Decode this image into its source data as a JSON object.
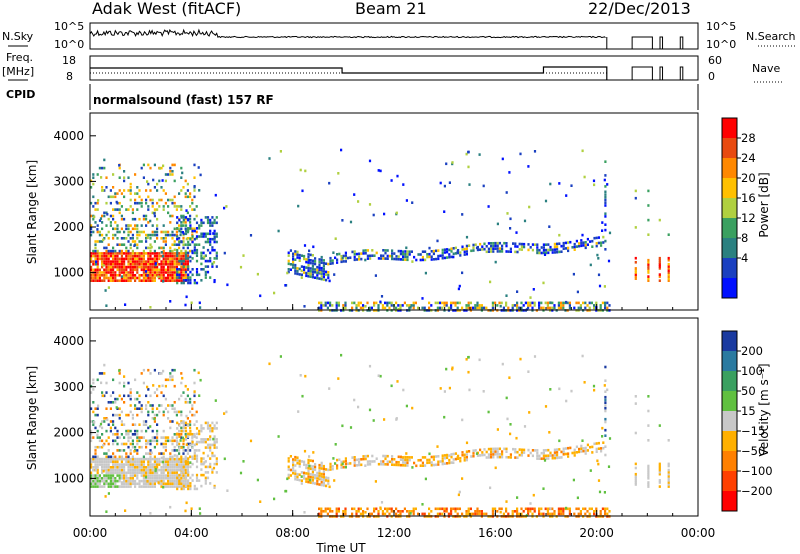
{
  "header": {
    "radar": "Adak West (fitACF)",
    "beam": "Beam 21",
    "date": "22/Dec/2013"
  },
  "params": {
    "nsky_label": "N.Sky",
    "nsky_ticks": [
      "10^5",
      "10^0"
    ],
    "nsearch_label": "N.Search",
    "nsearch_ticks": [
      "10^5",
      "10^0"
    ],
    "freq_label": "Freq.",
    "freq_unit": "[MHz]",
    "freq_ticks": [
      "18",
      "8"
    ],
    "nave_label": "Nave",
    "nave_ticks": [
      "60",
      "0"
    ],
    "cpid_label": "CPID",
    "cpid_value": "normalsound (fast) 157 RF"
  },
  "power_scale": {
    "label": "Power [dB]",
    "ticks": [
      "28",
      "24",
      "20",
      "16",
      "12",
      "8",
      "4"
    ],
    "colors": [
      "#ff0000",
      "#e84a10",
      "#ff8800",
      "#ffc000",
      "#b0d040",
      "#3aa060",
      "#2a8080",
      "#1a40c0",
      "#0010ff"
    ]
  },
  "velocity_scale": {
    "label": "Velocity [m s⁻¹]",
    "ticks": [
      "200",
      "100",
      "50",
      "15",
      "−15",
      "−50",
      "−100",
      "−200"
    ],
    "colors": [
      "#1a3aa0",
      "#2a7aa0",
      "#3aa060",
      "#60c040",
      "#c8c8c8",
      "#ffb000",
      "#ff8000",
      "#ff4000",
      "#ff0000"
    ]
  },
  "chart_data": [
    {
      "type": "heatmap",
      "title": "Power",
      "ylabel": "Slant Range [km]",
      "yticks": [
        "4000",
        "3000",
        "2000",
        "1000"
      ],
      "ylim": [
        180,
        4500
      ],
      "xlim_hours": [
        0,
        24
      ],
      "xticks": [
        "00:00",
        "04:00",
        "08:00",
        "12:00",
        "16:00",
        "20:00",
        "00:00"
      ],
      "regions": [
        {
          "t": [
            0,
            3.9
          ],
          "r": [
            850,
            1500
          ],
          "level": "strong",
          "db": 26
        },
        {
          "t": [
            0,
            3.9
          ],
          "r": [
            1500,
            3300
          ],
          "level": "mixed",
          "db": 14
        },
        {
          "t": [
            3.5,
            5.0
          ],
          "r": [
            800,
            2300
          ],
          "level": "weak",
          "db": 8
        },
        {
          "t": [
            7.8,
            20.3
          ],
          "r": [
            900,
            1800
          ],
          "level": "weak",
          "db": 8
        },
        {
          "t": [
            9.0,
            20.5
          ],
          "r": [
            200,
            400
          ],
          "level": "ground",
          "db": 12
        },
        {
          "t": [
            21.3,
            22.8
          ],
          "r": [
            900,
            1300
          ],
          "level": "streaks",
          "db": 20
        }
      ]
    },
    {
      "type": "heatmap",
      "title": "Velocity",
      "ylabel": "Slant Range [km]",
      "xlabel": "Time UT",
      "yticks": [
        "4000",
        "3000",
        "2000",
        "1000"
      ],
      "ylim": [
        180,
        4500
      ],
      "xlim_hours": [
        0,
        24
      ],
      "xticks": [
        "00:00",
        "04:00",
        "08:00",
        "12:00",
        "16:00",
        "20:00",
        "00:00"
      ]
    }
  ]
}
